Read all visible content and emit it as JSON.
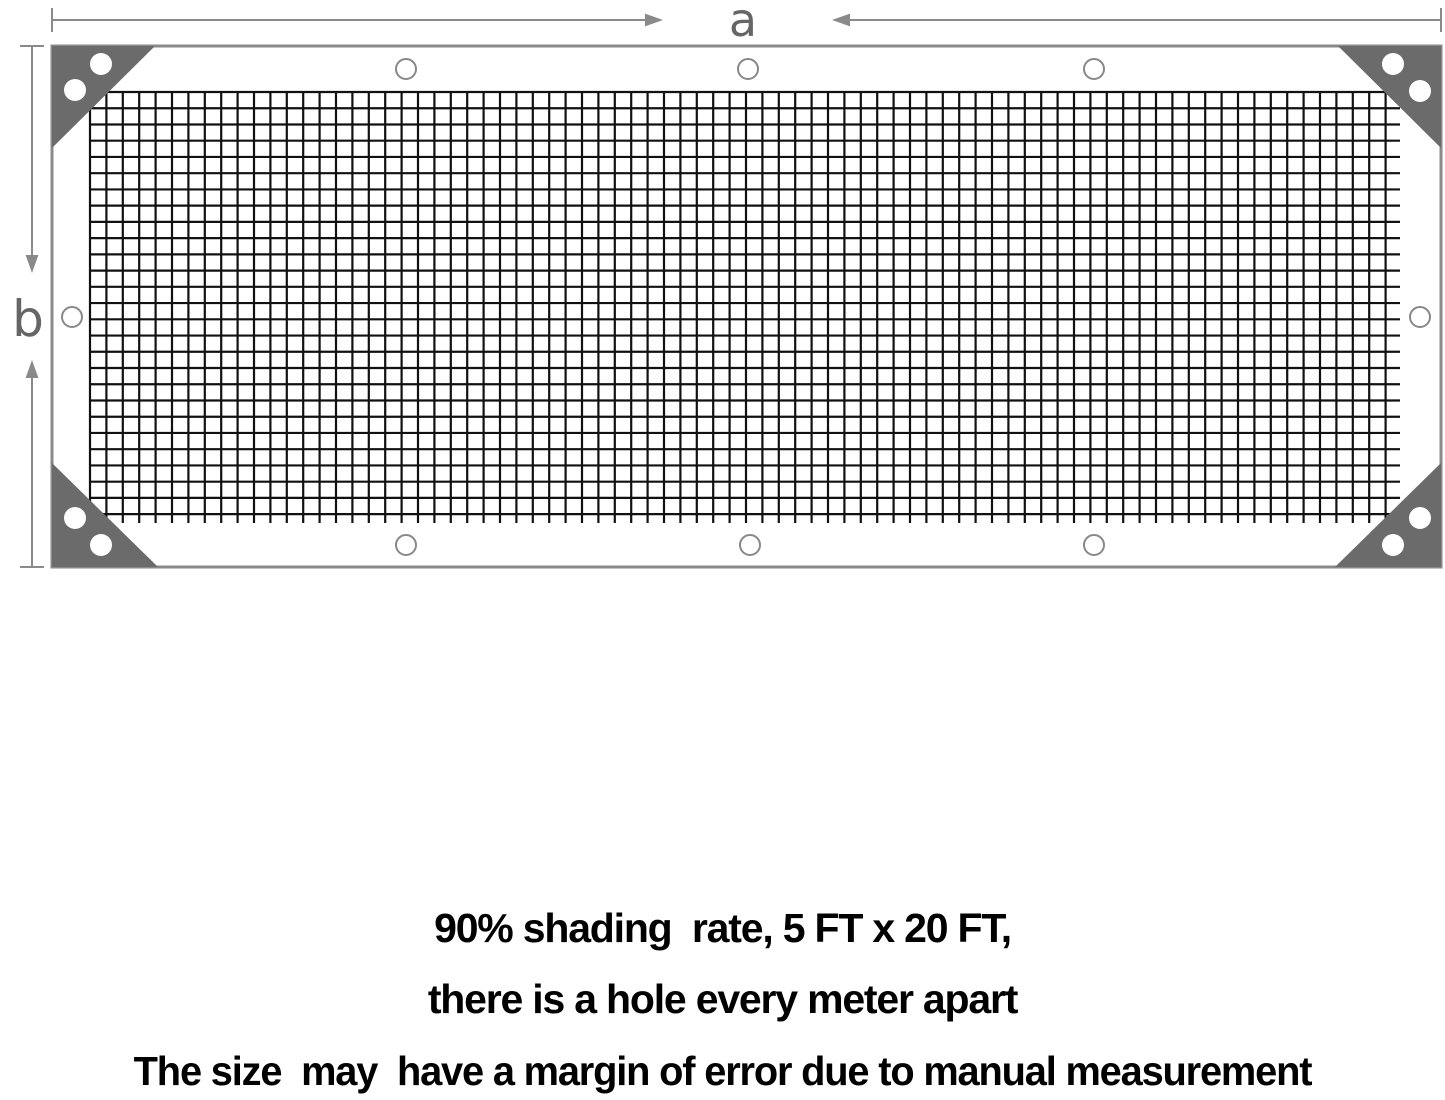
{
  "dimensions": {
    "width_label": "a",
    "height_label": "b"
  },
  "colors": {
    "frame": "#8a8a8a",
    "corner": "#6b6b6b",
    "mesh": "#111111",
    "text": "#000000"
  },
  "caption": {
    "line1": "90% shading  rate, 5 FT x 20 FT,",
    "line2": "there is a hole every meter apart",
    "line3": "The size  may  have a margin of error due to manual measurement"
  }
}
